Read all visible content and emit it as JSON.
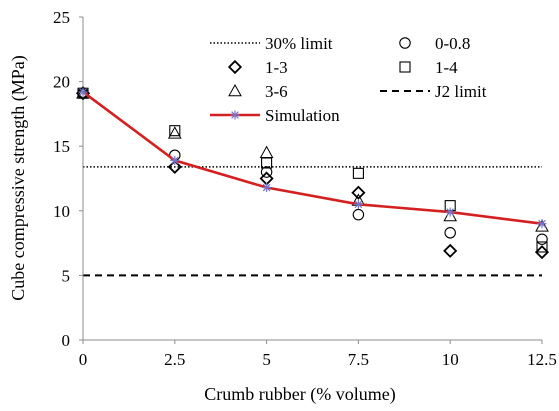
{
  "chart_data": {
    "type": "scatter",
    "title": "",
    "xlabel": "Crumb rubber (% volume)",
    "ylabel": "Cube compressive  strength (MPa)",
    "xlim": [
      0,
      12.5
    ],
    "ylim": [
      0,
      25
    ],
    "x_ticks": [
      "0",
      "2.5",
      "5",
      "7.5",
      "10",
      "12.5"
    ],
    "y_ticks": [
      "0",
      "5",
      "10",
      "15",
      "20",
      "25"
    ],
    "grid": false,
    "legend_position": "top-right",
    "series": [
      {
        "name": "0-0.8",
        "marker": "circle",
        "x": [
          0,
          2.5,
          5,
          7.5,
          10,
          12.5
        ],
        "y": [
          19.1,
          14.3,
          13.0,
          9.7,
          8.3,
          7.8
        ]
      },
      {
        "name": "1-3",
        "marker": "diamond",
        "x": [
          0,
          2.5,
          5,
          7.5,
          10,
          12.5
        ],
        "y": [
          19.1,
          13.4,
          12.5,
          11.4,
          6.9,
          6.8
        ]
      },
      {
        "name": "1-4",
        "marker": "square",
        "x": [
          0,
          2.5,
          5,
          7.5,
          10,
          12.5
        ],
        "y": [
          19.1,
          16.2,
          13.7,
          12.9,
          10.4,
          7.2
        ]
      },
      {
        "name": "3-6",
        "marker": "triangle",
        "x": [
          0,
          2.5,
          5,
          7.5,
          10,
          12.5
        ],
        "y": [
          19.1,
          16.0,
          14.5,
          10.8,
          9.6,
          8.8
        ]
      },
      {
        "name": "Simulation",
        "marker": "asterisk",
        "line": true,
        "color": "#d42020",
        "marker_color": "#7575c8",
        "x": [
          0,
          2.5,
          5,
          7.5,
          10,
          12.5
        ],
        "y": [
          19.2,
          13.9,
          11.8,
          10.5,
          9.9,
          9.0
        ]
      }
    ],
    "reference_lines": [
      {
        "name": "30% limit",
        "style": "dotted",
        "y": 13.4
      },
      {
        "name": "J2 limit",
        "style": "dashed",
        "y": 5.0
      }
    ]
  }
}
